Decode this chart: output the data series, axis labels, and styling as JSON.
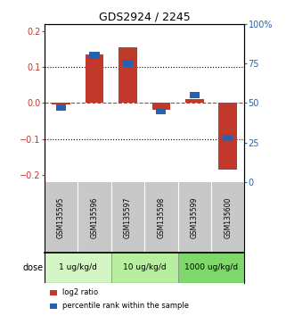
{
  "title": "GDS2924 / 2245",
  "samples": [
    "GSM135595",
    "GSM135596",
    "GSM135597",
    "GSM135598",
    "GSM135599",
    "GSM135600"
  ],
  "log2_ratio": [
    -0.005,
    0.135,
    0.155,
    -0.02,
    0.01,
    -0.185
  ],
  "percentile_rank": [
    47,
    80,
    75,
    45,
    55,
    28
  ],
  "ylim_left": [
    -0.22,
    0.22
  ],
  "ylim_right": [
    0,
    100
  ],
  "yticks_left": [
    -0.2,
    -0.1,
    0,
    0.1,
    0.2
  ],
  "yticks_right": [
    0,
    25,
    50,
    75,
    100
  ],
  "ytick_labels_right": [
    "0",
    "25",
    "50",
    "75",
    "100%"
  ],
  "red_color": "#c0392b",
  "blue_color": "#2563b0",
  "doses": [
    {
      "label": "1 ug/kg/d",
      "color": "#d4f5c4",
      "start": 0,
      "end": 1
    },
    {
      "label": "10 ug/kg/d",
      "color": "#b8eea0",
      "start": 2,
      "end": 3
    },
    {
      "label": "1000 ug/kg/d",
      "color": "#7ed96a",
      "start": 4,
      "end": 5
    }
  ],
  "sample_bg_color": "#c8c8c8",
  "dose_label": "dose",
  "legend_red": "log2 ratio",
  "legend_blue": "percentile rank within the sample"
}
